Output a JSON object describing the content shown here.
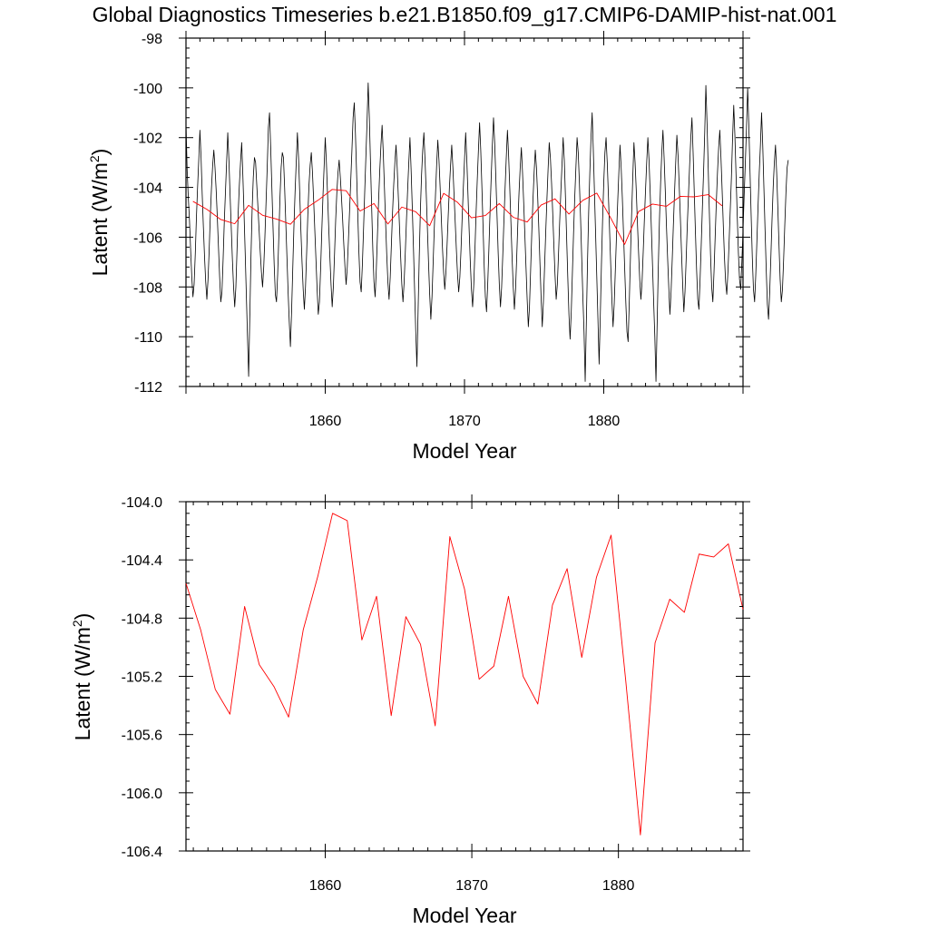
{
  "title": "Global Diagnostics Timeseries b.e21.B1850.f09_g17.CMIP6-DAMIP-hist-nat.001",
  "colors": {
    "monthly": "#000000",
    "annual": "#ff0000",
    "frame": "#000000"
  },
  "chart_data": [
    {
      "type": "line",
      "xlabel": "Model Year",
      "ylabel": "Latent (W/m",
      "ylabel_sup": "2",
      "ylabel_close": ")",
      "xlim": [
        1850,
        1890
      ],
      "ylim": [
        -112,
        -98
      ],
      "xticks": [
        1860,
        1870,
        1880
      ],
      "xtick_labels": [
        "1860",
        "1870",
        "1880"
      ],
      "yticks": [
        -98,
        -100,
        -102,
        -104,
        -106,
        -108,
        -110,
        -112
      ],
      "ytick_labels": [
        "-98",
        "-100",
        "-102",
        "-104",
        "-106",
        "-108",
        "-110",
        "-112"
      ],
      "grid": false,
      "series": [
        {
          "color": "#000000",
          "x_start": 1850.0,
          "x_step": 0.083333,
          "values": [
            -101.4,
            -103.3,
            -104.4,
            -105.3,
            -106.5,
            -107.6,
            -108.4,
            -107.9,
            -106.7,
            -105.2,
            -104.0,
            -102.9,
            -101.7,
            -102.8,
            -104.3,
            -105.6,
            -106.8,
            -107.8,
            -108.5,
            -107.7,
            -106.5,
            -105.1,
            -104.0,
            -103.1,
            -102.5,
            -103.2,
            -104.1,
            -105.2,
            -106.4,
            -107.6,
            -108.6,
            -108.2,
            -106.9,
            -105.4,
            -104.2,
            -103.0,
            -101.8,
            -102.9,
            -104.3,
            -105.6,
            -106.9,
            -108.0,
            -108.8,
            -108.0,
            -106.5,
            -105.0,
            -103.9,
            -103.0,
            -102.2,
            -103.5,
            -105.0,
            -106.6,
            -108.3,
            -110.0,
            -111.6,
            -109.2,
            -106.8,
            -104.9,
            -103.6,
            -102.8,
            -103.0,
            -103.9,
            -104.8,
            -105.7,
            -106.6,
            -107.4,
            -108.0,
            -107.2,
            -106.0,
            -104.6,
            -103.2,
            -101.6,
            -101.0,
            -102.4,
            -104.0,
            -105.6,
            -107.1,
            -108.3,
            -108.6,
            -107.5,
            -106.0,
            -104.4,
            -103.2,
            -102.6,
            -102.8,
            -104.0,
            -105.4,
            -106.8,
            -108.2,
            -109.4,
            -110.4,
            -109.0,
            -107.3,
            -105.6,
            -104.2,
            -103.0,
            -101.8,
            -102.8,
            -104.2,
            -105.7,
            -107.0,
            -108.1,
            -108.9,
            -108.0,
            -106.6,
            -105.1,
            -103.9,
            -103.1,
            -102.6,
            -103.4,
            -104.5,
            -105.7,
            -106.9,
            -108.1,
            -109.1,
            -108.6,
            -107.3,
            -105.8,
            -104.4,
            -103.2,
            -102.0,
            -103.0,
            -104.3,
            -105.6,
            -106.8,
            -107.9,
            -108.8,
            -108.0,
            -106.7,
            -105.3,
            -104.2,
            -103.4,
            -102.9,
            -103.6,
            -104.4,
            -105.3,
            -106.3,
            -107.2,
            -107.9,
            -107.2,
            -106.1,
            -104.9,
            -103.7,
            -102.5,
            -101.2,
            -100.6,
            -101.8,
            -103.4,
            -105.0,
            -106.6,
            -107.8,
            -108.2,
            -107.1,
            -105.7,
            -104.2,
            -102.8,
            -101.4,
            -99.8,
            -101.2,
            -103.0,
            -104.8,
            -106.5,
            -107.8,
            -108.4,
            -107.3,
            -105.9,
            -104.5,
            -103.3,
            -102.3,
            -101.5,
            -102.6,
            -104.0,
            -105.4,
            -106.7,
            -107.8,
            -108.5,
            -107.6,
            -106.3,
            -105.0,
            -103.9,
            -103.0,
            -102.3,
            -103.2,
            -104.4,
            -105.6,
            -106.8,
            -107.9,
            -108.6,
            -107.8,
            -106.6,
            -105.3,
            -104.1,
            -103.0,
            -102.0,
            -103.3,
            -104.8,
            -106.4,
            -108.1,
            -109.8,
            -111.2,
            -109.0,
            -106.8,
            -104.9,
            -103.5,
            -102.5,
            -101.8,
            -102.9,
            -104.2,
            -105.6,
            -107.0,
            -108.3,
            -109.3,
            -108.4,
            -107.0,
            -105.6,
            -104.3,
            -103.1,
            -102.1,
            -102.9,
            -104.0,
            -105.2,
            -106.4,
            -107.4,
            -108.1,
            -107.4,
            -106.3,
            -105.1,
            -104.0,
            -103.1,
            -102.3,
            -103.2,
            -104.3,
            -105.4,
            -106.5,
            -107.5,
            -108.2,
            -107.6,
            -106.5,
            -105.2,
            -104.0,
            -102.9,
            -101.8,
            -102.9,
            -104.3,
            -105.7,
            -107.0,
            -108.1,
            -108.8,
            -107.9,
            -106.5,
            -105.0,
            -103.7,
            -102.5,
            -101.4,
            -102.5,
            -104.0,
            -105.6,
            -107.2,
            -108.4,
            -109.0,
            -107.9,
            -106.5,
            -105.0,
            -103.6,
            -102.3,
            -101.2,
            -102.2,
            -103.6,
            -105.1,
            -106.6,
            -107.9,
            -108.8,
            -108.0,
            -106.7,
            -105.3,
            -104.0,
            -102.8,
            -101.7,
            -102.7,
            -104.0,
            -105.4,
            -106.8,
            -108.0,
            -108.9,
            -108.1,
            -106.8,
            -105.4,
            -104.2,
            -103.2,
            -102.4,
            -103.4,
            -104.6,
            -105.9,
            -107.2,
            -108.5,
            -109.6,
            -108.8,
            -107.3,
            -105.8,
            -104.5,
            -103.4,
            -102.5,
            -103.2,
            -104.3,
            -105.6,
            -107.0,
            -108.4,
            -109.6,
            -108.6,
            -107.2,
            -105.8,
            -104.5,
            -103.3,
            -102.2,
            -102.8,
            -103.8,
            -105.0,
            -106.3,
            -107.5,
            -108.5,
            -107.9,
            -106.7,
            -105.4,
            -104.2,
            -103.1,
            -102.0,
            -102.9,
            -104.4,
            -106.0,
            -107.6,
            -109.1,
            -110.1,
            -109.0,
            -107.4,
            -105.8,
            -104.4,
            -103.2,
            -102.0,
            -102.6,
            -103.8,
            -105.2,
            -106.8,
            -108.4,
            -109.8,
            -111.8,
            -109.4,
            -107.0,
            -105.0,
            -103.4,
            -102.0,
            -101.0,
            -102.5,
            -104.2,
            -105.9,
            -107.6,
            -109.3,
            -111.1,
            -109.2,
            -107.1,
            -105.3,
            -103.8,
            -102.6,
            -102.0,
            -103.0,
            -104.3,
            -105.7,
            -107.1,
            -108.5,
            -109.6,
            -108.7,
            -107.3,
            -105.9,
            -104.6,
            -103.4,
            -102.3,
            -103.2,
            -104.4,
            -105.8,
            -107.2,
            -108.6,
            -109.8,
            -110.2,
            -108.6,
            -106.8,
            -105.1,
            -103.6,
            -102.2,
            -103.0,
            -104.1,
            -105.4,
            -106.6,
            -107.7,
            -108.5,
            -107.8,
            -106.6,
            -105.3,
            -104.1,
            -103.0,
            -102.0,
            -102.9,
            -104.2,
            -105.6,
            -107.1,
            -108.6,
            -110.0,
            -111.8,
            -109.5,
            -107.2,
            -105.3,
            -103.8,
            -102.6,
            -101.7,
            -102.8,
            -104.1,
            -105.5,
            -106.8,
            -108.0,
            -109.1,
            -108.2,
            -106.9,
            -105.5,
            -104.2,
            -103.0,
            -101.9,
            -102.7,
            -103.9,
            -105.2,
            -106.6,
            -107.9,
            -109.0,
            -108.2,
            -106.9,
            -105.5,
            -104.3,
            -103.1,
            -102.0,
            -101.2,
            -102.6,
            -104.2,
            -105.8,
            -107.3,
            -108.5,
            -108.9,
            -107.7,
            -106.3,
            -104.8,
            -103.4,
            -101.8,
            -99.9,
            -101.4,
            -103.2,
            -105.0,
            -106.7,
            -108.0,
            -108.6,
            -107.4,
            -106.0,
            -104.6,
            -103.4,
            -102.4,
            -101.7,
            -102.8,
            -104.1,
            -105.5,
            -106.8,
            -107.8,
            -108.3,
            -107.4,
            -106.2,
            -104.9,
            -103.6,
            -102.0,
            -100.7,
            -101.9,
            -103.5,
            -105.1,
            -106.6,
            -107.7,
            -108.1,
            -107.0,
            -105.7,
            -104.3,
            -103.0,
            -101.6,
            -100.0,
            -101.5,
            -103.3,
            -105.1,
            -106.8,
            -108.1,
            -108.6,
            -107.5,
            -106.1,
            -104.7,
            -103.4,
            -102.3,
            -101.0,
            -102.3,
            -104.0,
            -105.7,
            -107.3,
            -108.7,
            -109.3,
            -108.2,
            -106.8,
            -105.3,
            -104.0,
            -103.0,
            -102.3,
            -103.4,
            -104.8,
            -106.3,
            -107.7,
            -108.6,
            -108.1,
            -106.9,
            -105.5,
            -104.2,
            -103.2,
            -102.9
          ]
        },
        {
          "color": "#ff0000",
          "x": [
            1850.5,
            1851.5,
            1852.5,
            1853.5,
            1854.5,
            1855.5,
            1856.5,
            1857.5,
            1858.5,
            1859.5,
            1860.5,
            1861.5,
            1862.5,
            1863.5,
            1864.5,
            1865.5,
            1866.5,
            1867.5,
            1868.5,
            1869.5,
            1870.5,
            1871.5,
            1872.5,
            1873.5,
            1874.5,
            1875.5,
            1876.5,
            1877.5,
            1878.5,
            1879.5,
            1880.5,
            1881.5,
            1882.5,
            1883.5,
            1884.5,
            1885.5,
            1886.5,
            1887.5,
            1888.5
          ],
          "values": [
            -104.56,
            -104.88,
            -105.29,
            -105.46,
            -104.72,
            -105.12,
            -105.27,
            -105.48,
            -104.88,
            -104.51,
            -104.08,
            -104.13,
            -104.95,
            -104.65,
            -105.47,
            -104.79,
            -104.98,
            -105.54,
            -104.24,
            -104.6,
            -105.22,
            -105.13,
            -104.65,
            -105.2,
            -105.39,
            -104.71,
            -104.46,
            -105.07,
            -104.52,
            -104.23,
            -105.23,
            -106.29,
            -104.97,
            -104.67,
            -104.76,
            -104.36,
            -104.38,
            -104.29,
            -104.74
          ]
        }
      ]
    },
    {
      "type": "line",
      "xlabel": "Model Year",
      "ylabel": "Latent (W/m",
      "ylabel_sup": "2",
      "ylabel_close": ")",
      "xlim": [
        1850.5,
        1888.5
      ],
      "ylim": [
        -106.4,
        -104.0
      ],
      "xticks": [
        1860,
        1870,
        1880
      ],
      "xtick_labels": [
        "1860",
        "1870",
        "1880"
      ],
      "yticks": [
        -104.0,
        -104.4,
        -104.8,
        -105.2,
        -105.6,
        -106.0,
        -106.4
      ],
      "ytick_labels": [
        "-104.0",
        "-104.4",
        "-104.8",
        "-105.2",
        "-105.6",
        "-106.0",
        "-106.4"
      ],
      "grid": false,
      "series": [
        {
          "color": "#ff0000",
          "x": [
            1850.5,
            1851.5,
            1852.5,
            1853.5,
            1854.5,
            1855.5,
            1856.5,
            1857.5,
            1858.5,
            1859.5,
            1860.5,
            1861.5,
            1862.5,
            1863.5,
            1864.5,
            1865.5,
            1866.5,
            1867.5,
            1868.5,
            1869.5,
            1870.5,
            1871.5,
            1872.5,
            1873.5,
            1874.5,
            1875.5,
            1876.5,
            1877.5,
            1878.5,
            1879.5,
            1880.5,
            1881.5,
            1882.5,
            1883.5,
            1884.5,
            1885.5,
            1886.5,
            1887.5,
            1888.5
          ],
          "values": [
            -104.56,
            -104.88,
            -105.29,
            -105.46,
            -104.72,
            -105.12,
            -105.27,
            -105.48,
            -104.88,
            -104.51,
            -104.08,
            -104.13,
            -104.95,
            -104.65,
            -105.47,
            -104.79,
            -104.98,
            -105.54,
            -104.24,
            -104.6,
            -105.22,
            -105.13,
            -104.65,
            -105.2,
            -105.39,
            -104.71,
            -104.46,
            -105.07,
            -104.52,
            -104.23,
            -105.23,
            -106.29,
            -104.97,
            -104.67,
            -104.76,
            -104.36,
            -104.38,
            -104.29,
            -104.74
          ]
        }
      ]
    }
  ]
}
